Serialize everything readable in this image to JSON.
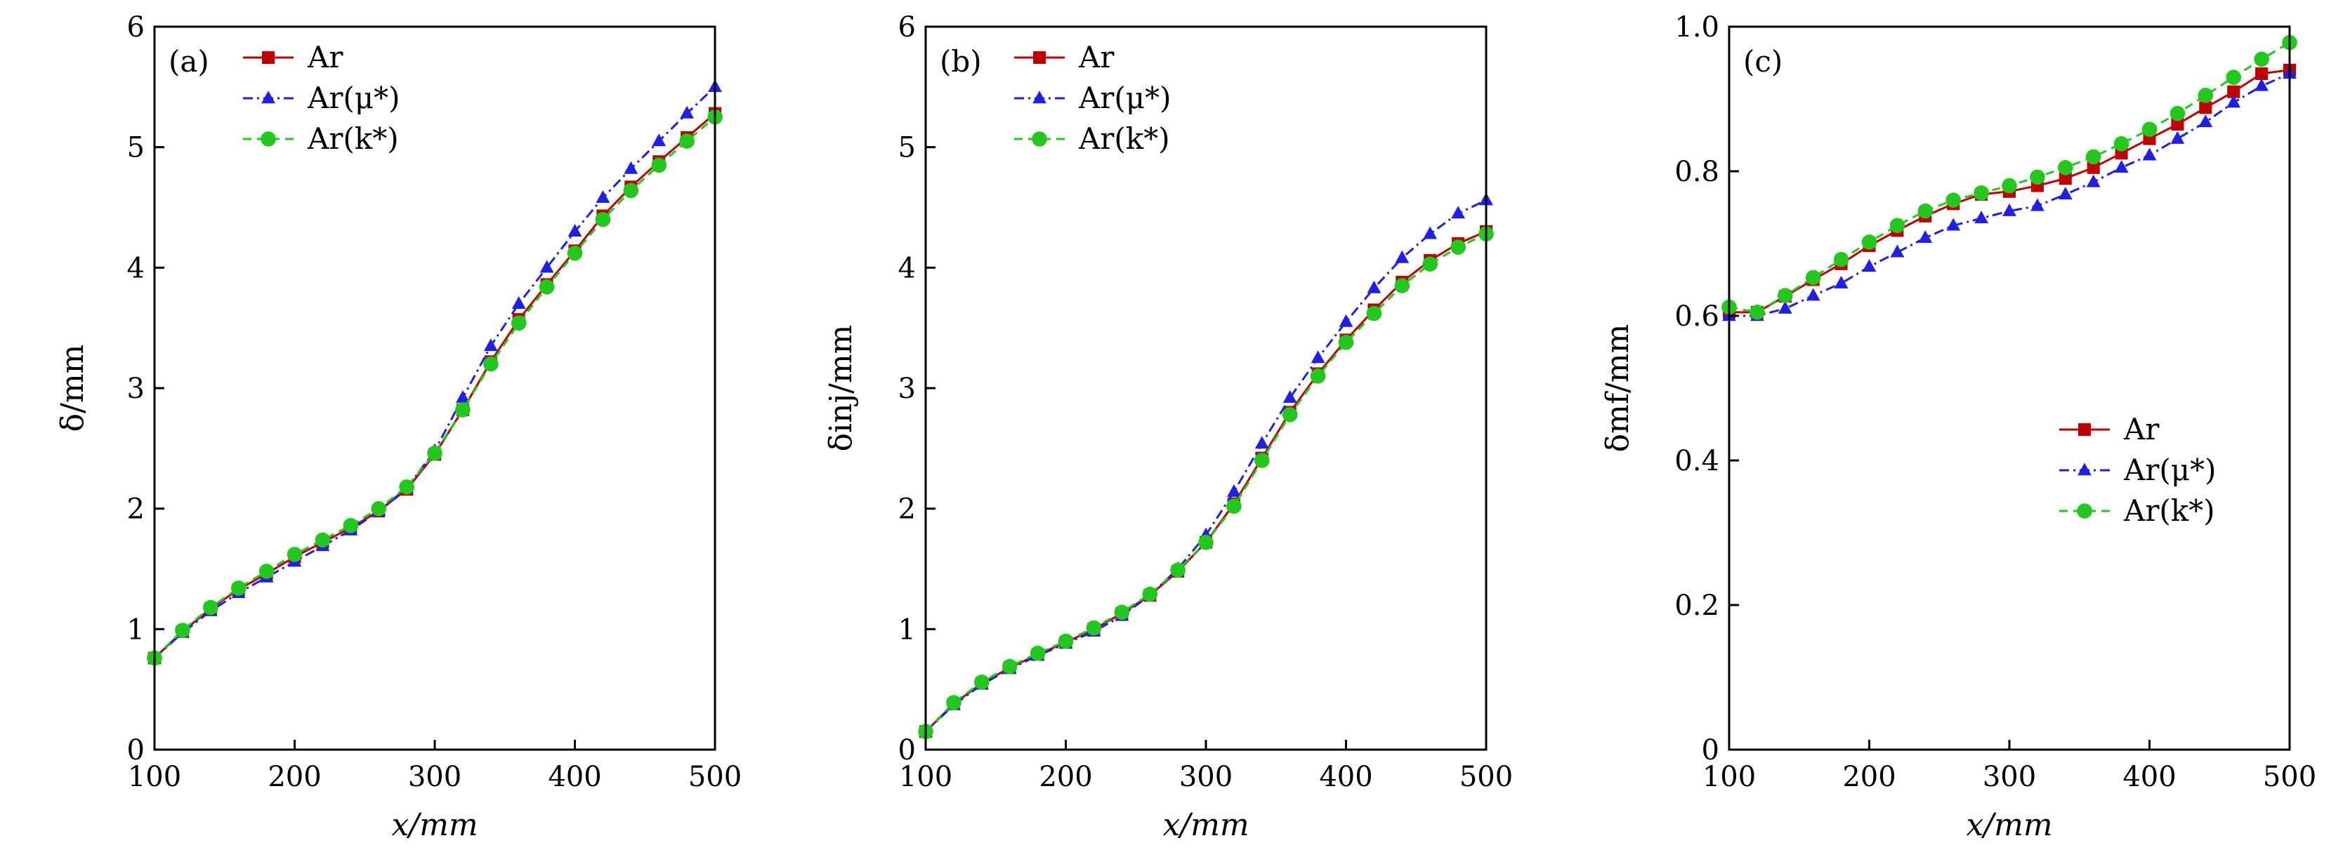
{
  "colors": {
    "ar": "#c00000",
    "ar_mu": "#1f1fe6",
    "ar_k": "#22c81e",
    "axis": "#000000"
  },
  "chart_data": [
    {
      "type": "line",
      "panel_label": "(a)",
      "xlabel": "x/mm",
      "ylabel": "δ/mm",
      "xlim": [
        100,
        500
      ],
      "ylim": [
        0,
        6
      ],
      "xticks": [
        100,
        200,
        300,
        400,
        500
      ],
      "yticks": [
        0,
        1,
        2,
        3,
        4,
        5,
        6
      ],
      "legend_position": "top-left",
      "series": [
        {
          "name": "Ar",
          "legend": "Ar",
          "marker": "square",
          "line": "solid",
          "x": [
            100,
            120,
            140,
            160,
            180,
            200,
            220,
            240,
            260,
            280,
            300,
            320,
            340,
            360,
            380,
            400,
            420,
            440,
            460,
            480,
            500
          ],
          "y": [
            0.76,
            0.98,
            1.17,
            1.33,
            1.46,
            1.6,
            1.72,
            1.84,
            1.98,
            2.16,
            2.45,
            2.82,
            3.22,
            3.57,
            3.86,
            4.14,
            4.43,
            4.67,
            4.88,
            5.08,
            5.28
          ]
        },
        {
          "name": "Ar(μ*)",
          "legend": "Ar(μ*)",
          "marker": "triangle",
          "line": "dashdot",
          "x": [
            100,
            120,
            140,
            160,
            180,
            200,
            220,
            240,
            260,
            280,
            300,
            320,
            340,
            360,
            380,
            400,
            420,
            440,
            460,
            480,
            500
          ],
          "y": [
            0.76,
            0.97,
            1.15,
            1.3,
            1.43,
            1.56,
            1.69,
            1.82,
            1.98,
            2.17,
            2.48,
            2.92,
            3.35,
            3.7,
            4.0,
            4.3,
            4.58,
            4.82,
            5.05,
            5.28,
            5.5
          ]
        },
        {
          "name": "Ar(k*)",
          "legend": "Ar(k*)",
          "marker": "circle",
          "line": "dashed",
          "x": [
            100,
            120,
            140,
            160,
            180,
            200,
            220,
            240,
            260,
            280,
            300,
            320,
            340,
            360,
            380,
            400,
            420,
            440,
            460,
            480,
            500
          ],
          "y": [
            0.76,
            0.99,
            1.18,
            1.34,
            1.48,
            1.62,
            1.74,
            1.86,
            2.0,
            2.18,
            2.46,
            2.82,
            3.2,
            3.54,
            3.84,
            4.12,
            4.4,
            4.64,
            4.85,
            5.05,
            5.25
          ]
        }
      ]
    },
    {
      "type": "line",
      "panel_label": "(b)",
      "xlabel": "x/mm",
      "ylabel": "δinj/mm",
      "xlim": [
        100,
        500
      ],
      "ylim": [
        0,
        6
      ],
      "xticks": [
        100,
        200,
        300,
        400,
        500
      ],
      "yticks": [
        0,
        1,
        2,
        3,
        4,
        5,
        6
      ],
      "legend_position": "top-left",
      "series": [
        {
          "name": "Ar",
          "legend": "Ar",
          "marker": "square",
          "line": "solid",
          "x": [
            100,
            120,
            140,
            160,
            180,
            200,
            220,
            240,
            260,
            280,
            300,
            320,
            340,
            360,
            380,
            400,
            420,
            440,
            460,
            480,
            500
          ],
          "y": [
            0.15,
            0.38,
            0.55,
            0.68,
            0.79,
            0.89,
            1.0,
            1.13,
            1.28,
            1.48,
            1.72,
            2.04,
            2.42,
            2.8,
            3.12,
            3.4,
            3.65,
            3.88,
            4.06,
            4.2,
            4.3
          ]
        },
        {
          "name": "Ar(μ*)",
          "legend": "Ar(μ*)",
          "marker": "triangle",
          "line": "dashdot",
          "x": [
            100,
            120,
            140,
            160,
            180,
            200,
            220,
            240,
            260,
            280,
            300,
            320,
            340,
            360,
            380,
            400,
            420,
            440,
            460,
            480,
            500
          ],
          "y": [
            0.15,
            0.37,
            0.54,
            0.67,
            0.78,
            0.88,
            0.98,
            1.11,
            1.28,
            1.5,
            1.78,
            2.14,
            2.54,
            2.92,
            3.25,
            3.55,
            3.83,
            4.08,
            4.28,
            4.45,
            4.56
          ]
        },
        {
          "name": "Ar(k*)",
          "legend": "Ar(k*)",
          "marker": "circle",
          "line": "dashed",
          "x": [
            100,
            120,
            140,
            160,
            180,
            200,
            220,
            240,
            260,
            280,
            300,
            320,
            340,
            360,
            380,
            400,
            420,
            440,
            460,
            480,
            500
          ],
          "y": [
            0.15,
            0.39,
            0.56,
            0.69,
            0.8,
            0.9,
            1.01,
            1.14,
            1.29,
            1.49,
            1.72,
            2.02,
            2.4,
            2.78,
            3.1,
            3.38,
            3.62,
            3.85,
            4.03,
            4.17,
            4.28
          ]
        }
      ]
    },
    {
      "type": "line",
      "panel_label": "(c)",
      "xlabel": "x/mm",
      "ylabel": "δmf/mm",
      "xlim": [
        100,
        500
      ],
      "ylim": [
        0,
        1.0
      ],
      "xticks": [
        100,
        200,
        300,
        400,
        500
      ],
      "yticks": [
        0,
        0.2,
        0.4,
        0.6,
        0.8,
        1.0
      ],
      "legend_position": "center-right",
      "series": [
        {
          "name": "Ar",
          "legend": "Ar",
          "marker": "square",
          "line": "solid",
          "x": [
            100,
            120,
            140,
            160,
            180,
            200,
            220,
            240,
            260,
            280,
            300,
            320,
            340,
            360,
            380,
            400,
            420,
            440,
            460,
            480,
            500
          ],
          "y": [
            0.605,
            0.605,
            0.627,
            0.65,
            0.672,
            0.697,
            0.718,
            0.738,
            0.755,
            0.768,
            0.772,
            0.78,
            0.79,
            0.805,
            0.825,
            0.845,
            0.865,
            0.888,
            0.91,
            0.935,
            0.94
          ]
        },
        {
          "name": "Ar(μ*)",
          "legend": "Ar(μ*)",
          "marker": "triangle",
          "line": "dashdot",
          "x": [
            100,
            120,
            140,
            160,
            180,
            200,
            220,
            240,
            260,
            280,
            300,
            320,
            340,
            360,
            380,
            400,
            420,
            440,
            460,
            480,
            500
          ],
          "y": [
            0.6,
            0.6,
            0.61,
            0.628,
            0.645,
            0.668,
            0.688,
            0.708,
            0.725,
            0.735,
            0.745,
            0.752,
            0.768,
            0.785,
            0.805,
            0.822,
            0.845,
            0.868,
            0.895,
            0.918,
            0.935
          ]
        },
        {
          "name": "Ar(k*)",
          "legend": "Ar(k*)",
          "marker": "circle",
          "line": "dashed",
          "x": [
            100,
            120,
            140,
            160,
            180,
            200,
            220,
            240,
            260,
            280,
            300,
            320,
            340,
            360,
            380,
            400,
            420,
            440,
            460,
            480,
            500
          ],
          "y": [
            0.612,
            0.605,
            0.628,
            0.653,
            0.678,
            0.702,
            0.725,
            0.745,
            0.76,
            0.77,
            0.78,
            0.792,
            0.805,
            0.82,
            0.838,
            0.858,
            0.88,
            0.905,
            0.93,
            0.955,
            0.978
          ]
        }
      ]
    }
  ]
}
